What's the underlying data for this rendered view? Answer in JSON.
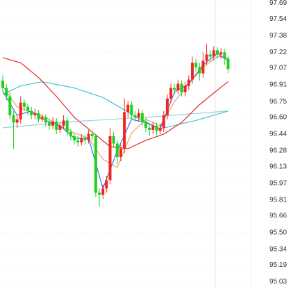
{
  "chart_data": {
    "type": "candlestick",
    "ylim": [
      94.98,
      97.72
    ],
    "yticks": [
      {
        "value": 97.69,
        "label": "97.69"
      },
      97.54,
      97.38,
      97.22,
      97.07,
      96.91,
      96.75,
      {
        "value": 96.6,
        "label": "96.60"
      },
      96.44,
      96.28,
      96.13,
      95.97,
      95.81,
      95.66,
      {
        "value": 95.5,
        "label": "95.50"
      },
      95.34,
      95.19,
      95.03
    ],
    "grid": true,
    "up_color": "#f0261f",
    "down_color": "#1ed11e",
    "ohlc": {
      "open": [
        96.95,
        96.88,
        96.8,
        96.62,
        96.55,
        96.58,
        96.74,
        96.7,
        96.66,
        96.62,
        96.64,
        96.58,
        96.6,
        96.55,
        96.52,
        96.56,
        96.48,
        96.52,
        96.57,
        96.46,
        96.42,
        96.38,
        96.36,
        96.4,
        96.38,
        96.44,
        96.42,
        95.88,
        95.86,
        95.92,
        96.0,
        96.42,
        96.35,
        96.22,
        96.3,
        96.65,
        96.72,
        96.62,
        96.6,
        96.64,
        96.56,
        96.5,
        96.48,
        96.52,
        96.47,
        96.5,
        96.62,
        96.78,
        96.88,
        96.86,
        96.92,
        96.84,
        96.9,
        96.96,
        97.12,
        97.08,
        97.02,
        97.14,
        97.2,
        97.18,
        97.24,
        97.2,
        97.22,
        97.16
      ],
      "high": [
        97.0,
        96.92,
        96.84,
        96.66,
        96.62,
        96.8,
        96.77,
        96.73,
        96.7,
        96.68,
        96.67,
        96.63,
        96.63,
        96.58,
        96.6,
        96.59,
        96.55,
        96.62,
        96.6,
        96.49,
        96.45,
        96.42,
        96.44,
        96.43,
        96.48,
        96.47,
        96.44,
        95.92,
        95.96,
        96.04,
        96.5,
        96.46,
        96.38,
        96.34,
        96.78,
        96.76,
        96.75,
        96.66,
        96.68,
        96.67,
        96.6,
        96.53,
        96.56,
        96.55,
        96.54,
        96.66,
        96.82,
        96.92,
        96.92,
        96.96,
        96.95,
        96.94,
        97.0,
        97.18,
        97.16,
        97.12,
        97.22,
        97.3,
        97.24,
        97.28,
        97.27,
        97.26,
        97.25,
        97.18
      ],
      "low": [
        96.84,
        96.76,
        96.58,
        96.3,
        96.5,
        96.54,
        96.66,
        96.62,
        96.58,
        96.58,
        96.55,
        96.56,
        96.51,
        96.48,
        96.49,
        96.44,
        96.45,
        96.49,
        96.42,
        96.38,
        96.34,
        96.32,
        96.33,
        96.34,
        96.35,
        96.38,
        95.84,
        95.75,
        95.82,
        95.88,
        95.96,
        96.31,
        96.15,
        96.18,
        96.26,
        96.6,
        96.58,
        96.56,
        96.56,
        96.52,
        96.46,
        96.42,
        96.44,
        96.43,
        96.44,
        96.46,
        96.58,
        96.74,
        96.82,
        96.82,
        96.8,
        96.8,
        96.86,
        96.92,
        97.04,
        96.95,
        96.98,
        97.1,
        97.14,
        97.14,
        97.16,
        97.16,
        97.1,
        97.02
      ],
      "close": [
        96.88,
        96.8,
        96.62,
        96.55,
        96.58,
        96.74,
        96.7,
        96.66,
        96.62,
        96.64,
        96.58,
        96.6,
        96.55,
        96.52,
        96.56,
        96.48,
        96.52,
        96.57,
        96.46,
        96.42,
        96.38,
        96.36,
        96.4,
        96.38,
        96.44,
        96.42,
        95.88,
        95.86,
        95.92,
        96.0,
        96.42,
        96.35,
        96.22,
        96.3,
        96.65,
        96.72,
        96.62,
        96.6,
        96.64,
        96.56,
        96.5,
        96.48,
        96.52,
        96.47,
        96.5,
        96.62,
        96.78,
        96.88,
        96.86,
        96.92,
        96.84,
        96.9,
        96.96,
        97.12,
        97.08,
        97.02,
        97.14,
        97.2,
        97.18,
        97.24,
        97.2,
        97.22,
        97.16,
        97.06
      ]
    },
    "series": [
      {
        "color": "#8fd6dc",
        "x": [
          0,
          20,
          40,
          63
        ],
        "values": [
          96.5,
          96.56,
          96.6,
          96.66
        ]
      },
      {
        "color": "#3cc4d4",
        "x": [
          0,
          5,
          11,
          20,
          28,
          38,
          44,
          54,
          63
        ],
        "values": [
          96.82,
          96.9,
          96.94,
          96.88,
          96.79,
          96.59,
          96.49,
          96.57,
          96.66
        ]
      },
      {
        "color": "#e42a26",
        "x": [
          0,
          5,
          10,
          15,
          20,
          25,
          30,
          35,
          40,
          45,
          50,
          55,
          60,
          63
        ],
        "values": [
          97.17,
          97.12,
          96.98,
          96.8,
          96.6,
          96.46,
          96.32,
          96.3,
          96.38,
          96.44,
          96.55,
          96.72,
          96.86,
          96.94
        ]
      },
      {
        "color": "#e8a066",
        "x": [
          0,
          4,
          8,
          12,
          16,
          20,
          24,
          28,
          32,
          36,
          40,
          44,
          48,
          52,
          56,
          60,
          63
        ],
        "values": [
          96.9,
          96.7,
          96.65,
          96.6,
          96.52,
          96.45,
          96.4,
          96.2,
          96.12,
          96.45,
          96.58,
          96.52,
          96.75,
          96.92,
          97.08,
          97.18,
          97.17
        ]
      },
      {
        "color": "#3a6ee8",
        "x": [
          0,
          4,
          8,
          12,
          16,
          20,
          24,
          28,
          32,
          36,
          40,
          44,
          48,
          52,
          56,
          60,
          63
        ],
        "values": [
          96.85,
          96.62,
          96.66,
          96.57,
          96.52,
          96.4,
          96.4,
          95.92,
          96.28,
          96.58,
          96.55,
          96.49,
          96.84,
          96.92,
          97.1,
          97.21,
          97.14
        ]
      }
    ]
  }
}
